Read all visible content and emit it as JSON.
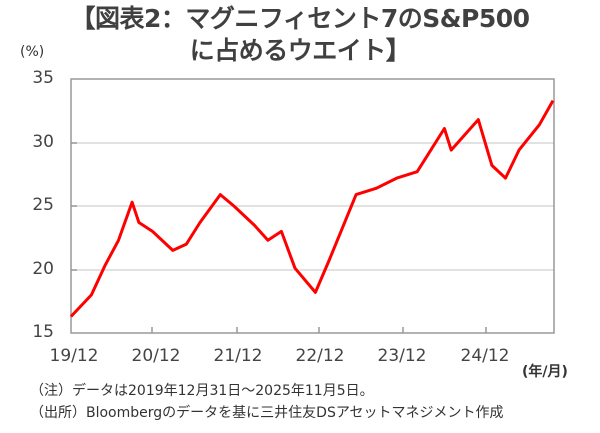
{
  "title": {
    "line1": "【図表2：マグニフィセント7のS&P500",
    "line2": "に占めるウエイト】"
  },
  "axis": {
    "y_unit": "(%)",
    "x_unit": "(年/月)",
    "y_ticks": [
      "35",
      "30",
      "25",
      "20",
      "15"
    ],
    "x_ticks": [
      "19/12",
      "20/12",
      "21/12",
      "22/12",
      "23/12",
      "24/12"
    ]
  },
  "notes": {
    "note": "（注）データは2019年12月31日～2025年11月5日。",
    "source": "（出所）Bloombergのデータを基に三井住友DSアセットマネジメント作成"
  },
  "colors": {
    "line": "#ff0000",
    "grid": "#d9d9d9",
    "axis": "#808080"
  },
  "chart_data": {
    "type": "line",
    "title": "【図表2：マグニフィセント7のS&P500に占めるウエイト】",
    "xlabel": "(年/月)",
    "ylabel": "(%)",
    "ylim": [
      15,
      35
    ],
    "y_ticks": [
      15,
      20,
      25,
      30,
      35
    ],
    "x_tick_labels": [
      "19/12",
      "20/12",
      "21/12",
      "22/12",
      "23/12",
      "24/12"
    ],
    "grid": true,
    "legend": null,
    "series": [
      {
        "name": "マグニフィセント7のS&P500に占めるウエイト",
        "x": [
          "2019/12",
          "2020/03",
          "2020/05",
          "2020/07",
          "2020/09",
          "2020/10",
          "2020/12",
          "2021/03",
          "2021/05",
          "2021/07",
          "2021/10",
          "2021/12",
          "2022/03",
          "2022/05",
          "2022/07",
          "2022/09",
          "2022/12",
          "2023/02",
          "2023/06",
          "2023/09",
          "2023/12",
          "2024/03",
          "2024/07",
          "2024/08",
          "2024/10",
          "2024/12",
          "2025/02",
          "2025/04",
          "2025/06",
          "2025/09",
          "2025/11"
        ],
        "values": [
          16.3,
          18.0,
          20.3,
          22.3,
          25.3,
          23.7,
          23.0,
          21.5,
          22.0,
          23.7,
          25.9,
          25.0,
          23.5,
          22.3,
          23.0,
          20.1,
          18.2,
          20.7,
          25.9,
          26.4,
          27.2,
          27.7,
          31.1,
          29.4,
          30.6,
          31.8,
          28.2,
          27.2,
          29.4,
          31.4,
          33.3
        ]
      }
    ]
  }
}
